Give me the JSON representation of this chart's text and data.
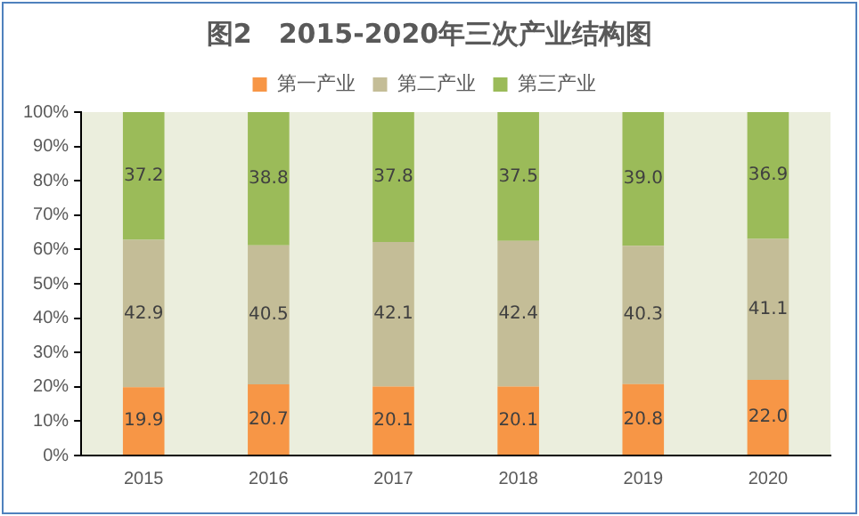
{
  "chart_data": {
    "type": "bar",
    "stacked": true,
    "title": "图2　2015-2020年三次产业结构图",
    "categories": [
      "2015",
      "2016",
      "2017",
      "2018",
      "2019",
      "2020"
    ],
    "series": [
      {
        "name": "第一产业",
        "color": "#f79646",
        "values": [
          19.9,
          20.7,
          20.1,
          20.1,
          20.8,
          22.0
        ],
        "value_labels": [
          "19.9",
          "20.7",
          "20.1",
          "20.1",
          "20.8",
          "22.0"
        ]
      },
      {
        "name": "第二产业",
        "color": "#c4bd97",
        "values": [
          42.9,
          40.5,
          42.1,
          42.4,
          40.3,
          41.1
        ],
        "value_labels": [
          "42.9",
          "40.5",
          "42.1",
          "42.4",
          "40.3",
          "41.1"
        ]
      },
      {
        "name": "第三产业",
        "color": "#9bbb59",
        "values": [
          37.2,
          38.8,
          37.8,
          37.5,
          39.0,
          36.9
        ],
        "value_labels": [
          "37.2",
          "38.8",
          "37.8",
          "37.5",
          "39.0",
          "36.9"
        ]
      }
    ],
    "ylim": [
      0,
      100
    ],
    "yticks": [
      {
        "value": 0,
        "label": "0%"
      },
      {
        "value": 10,
        "label": "10%"
      },
      {
        "value": 20,
        "label": "20%"
      },
      {
        "value": 30,
        "label": "30%"
      },
      {
        "value": 40,
        "label": "40%"
      },
      {
        "value": 50,
        "label": "50%"
      },
      {
        "value": 60,
        "label": "60%"
      },
      {
        "value": 70,
        "label": "70%"
      },
      {
        "value": 80,
        "label": "80%"
      },
      {
        "value": 90,
        "label": "90%"
      },
      {
        "value": 100,
        "label": "100%"
      }
    ],
    "legend": "top",
    "grid": false
  }
}
